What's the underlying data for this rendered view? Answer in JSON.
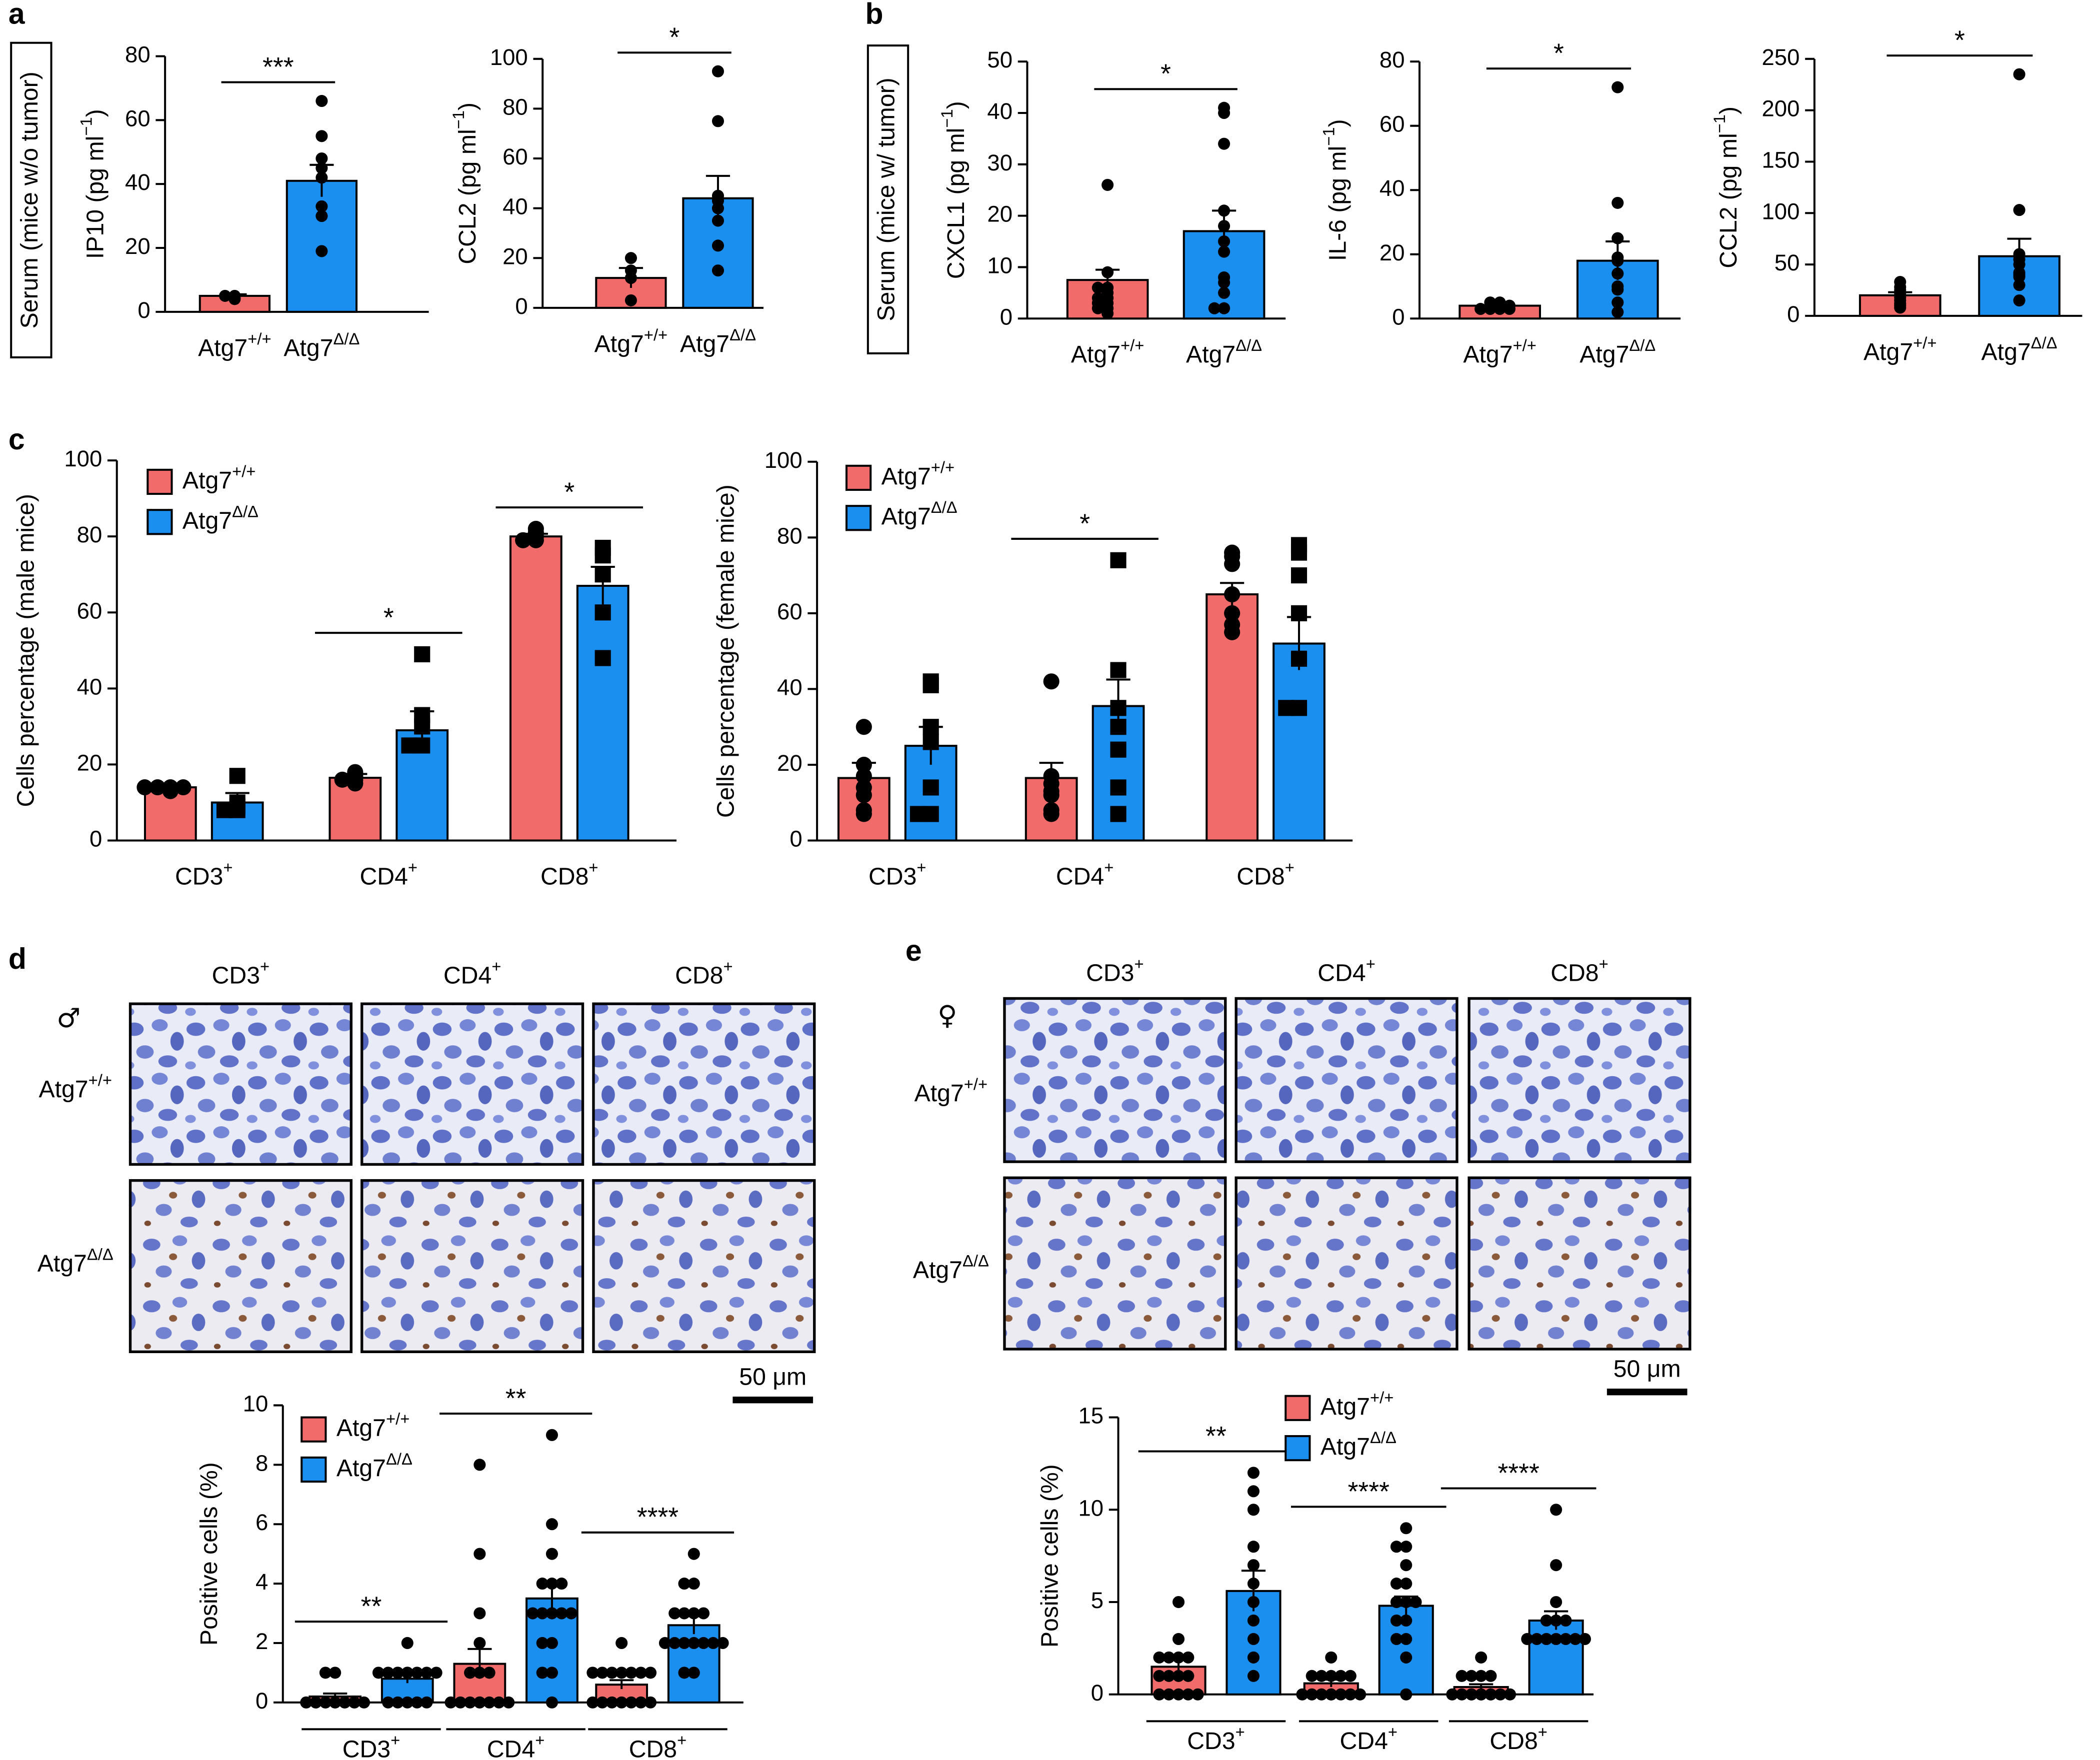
{
  "panel_labels": [
    "a",
    "b",
    "c",
    "d",
    "e"
  ],
  "serum_labels": [
    "Serum (mice w/o tumor)",
    "Serum (mice w/ tumor)"
  ],
  "micrographs": [
    {
      "symbol": "♂",
      "columns": [
        {
          "text": "CD3",
          "sup": "+"
        },
        {
          "text": "CD4",
          "sup": "+"
        },
        {
          "text": "CD8",
          "sup": "+"
        }
      ],
      "rows": [
        {
          "text": "Atg7",
          "sup": "+/+"
        },
        {
          "text": "Atg7",
          "sup": "Δ/Δ"
        }
      ],
      "scale_bar": "50 μm"
    },
    {
      "symbol": "♀",
      "columns": [
        {
          "text": "CD3",
          "sup": "+"
        },
        {
          "text": "CD4",
          "sup": "+"
        },
        {
          "text": "CD8",
          "sup": "+"
        }
      ],
      "rows": [
        {
          "text": "Atg7",
          "sup": "+/+"
        },
        {
          "text": "Atg7",
          "sup": "Δ/Δ"
        }
      ],
      "scale_bar": "50 μm"
    }
  ],
  "chart_data": [
    {
      "type": "bar",
      "ylabel": {
        "text": "IP10 (pg ml",
        "sup": "−1",
        "tail": ")"
      },
      "categories": [
        {
          "text": "Atg7",
          "sup": "+/+"
        },
        {
          "text": "Atg7",
          "sup": "Δ/Δ"
        }
      ],
      "colors": [
        "#f26b6b",
        "#1b8ff0"
      ],
      "marker": "circle",
      "values": [
        5,
        41
      ],
      "errors": [
        0.5,
        5
      ],
      "points": [
        [
          4,
          5,
          5,
          4.5
        ],
        [
          66,
          55,
          48,
          45,
          42,
          33,
          30,
          19
        ]
      ],
      "significance": "***",
      "ylim": [
        0,
        80
      ],
      "yticks": [
        0,
        20,
        40,
        60,
        80
      ]
    },
    {
      "type": "bar",
      "ylabel": {
        "text": "CCL2 (pg ml",
        "sup": "−1",
        "tail": ")"
      },
      "categories": [
        {
          "text": "Atg7",
          "sup": "+/+"
        },
        {
          "text": "Atg7",
          "sup": "Δ/Δ"
        }
      ],
      "colors": [
        "#f26b6b",
        "#1b8ff0"
      ],
      "marker": "circle",
      "values": [
        12,
        44
      ],
      "errors": [
        4,
        9
      ],
      "points": [
        [
          20,
          15,
          12,
          3
        ],
        [
          95,
          75,
          45,
          43,
          40,
          35,
          25,
          15
        ]
      ],
      "significance": "*",
      "ylim": [
        0,
        100
      ],
      "yticks": [
        0,
        20,
        40,
        60,
        80,
        100
      ]
    },
    {
      "type": "bar",
      "ylabel": {
        "text": "CXCL1 (pg ml",
        "sup": "−1",
        "tail": ")"
      },
      "categories": [
        {
          "text": "Atg7",
          "sup": "+/+"
        },
        {
          "text": "Atg7",
          "sup": "Δ/Δ"
        }
      ],
      "colors": [
        "#f26b6b",
        "#1b8ff0"
      ],
      "marker": "circle",
      "values": [
        7.5,
        17
      ],
      "errors": [
        2,
        4
      ],
      "points": [
        [
          26,
          9,
          6,
          6,
          5,
          4,
          4,
          3,
          3,
          2,
          2,
          1
        ],
        [
          41,
          40,
          34,
          21,
          18,
          15,
          13,
          8,
          7,
          5,
          2,
          2
        ]
      ],
      "significance": "*",
      "ylim": [
        0,
        50
      ],
      "yticks": [
        0,
        10,
        20,
        30,
        40,
        50
      ]
    },
    {
      "type": "bar",
      "ylabel": {
        "text": "IL-6 (pg ml",
        "sup": "−1",
        "tail": ")"
      },
      "categories": [
        {
          "text": "Atg7",
          "sup": "+/+"
        },
        {
          "text": "Atg7",
          "sup": "Δ/Δ"
        }
      ],
      "colors": [
        "#f26b6b",
        "#1b8ff0"
      ],
      "marker": "circle",
      "values": [
        4,
        18
      ],
      "errors": [
        0.5,
        6
      ],
      "points": [
        [
          5,
          5,
          4,
          4,
          4,
          3,
          3,
          3,
          3
        ],
        [
          72,
          36,
          25,
          19,
          18,
          14,
          10,
          9,
          5,
          2
        ]
      ],
      "significance": "*",
      "ylim": [
        0,
        80
      ],
      "yticks": [
        0,
        20,
        40,
        60,
        80
      ]
    },
    {
      "type": "bar",
      "ylabel": {
        "text": "CCL2 (pg ml",
        "sup": "−1",
        "tail": ")"
      },
      "categories": [
        {
          "text": "Atg7",
          "sup": "+/+"
        },
        {
          "text": "Atg7",
          "sup": "Δ/Δ"
        }
      ],
      "colors": [
        "#f26b6b",
        "#1b8ff0"
      ],
      "marker": "circle",
      "values": [
        20,
        58
      ],
      "errors": [
        3,
        17
      ],
      "points": [
        [
          33,
          28,
          25,
          22,
          20,
          18,
          15,
          12,
          10,
          8
        ],
        [
          235,
          103,
          60,
          55,
          50,
          42,
          40,
          38,
          30,
          15
        ]
      ],
      "significance": "*",
      "ylim": [
        0,
        250
      ],
      "yticks": [
        0,
        50,
        100,
        150,
        200,
        250
      ]
    },
    {
      "type": "bar",
      "ylabel": {
        "text": "Cells percentage (male mice)"
      },
      "categories": [
        {
          "text": "CD3",
          "sup": "+"
        },
        {
          "text": "CD4",
          "sup": "+"
        },
        {
          "text": "CD8",
          "sup": "+"
        }
      ],
      "series": [
        {
          "name": {
            "text": "Atg7",
            "sup": "+/+"
          },
          "color": "#f26b6b",
          "marker": "circle",
          "values": [
            14,
            16.5,
            80
          ],
          "errors": [
            0.5,
            1,
            0.7
          ],
          "points": [
            [
              14,
              14,
              13,
              14,
              14
            ],
            [
              18,
              16,
              15,
              17,
              16
            ],
            [
              80,
              82,
              81,
              79,
              79
            ]
          ]
        },
        {
          "name": {
            "text": "Atg7",
            "sup": "Δ/Δ"
          },
          "color": "#1b8ff0",
          "marker": "square",
          "values": [
            10,
            29,
            67
          ],
          "errors": [
            2.5,
            5,
            5
          ],
          "points": [
            [
              17,
              10,
              9,
              8,
              8
            ],
            [
              49,
              33,
              30,
              25,
              25
            ],
            [
              77,
              75,
              70,
              60,
              48
            ]
          ]
        }
      ],
      "annotations": [
        null,
        "*",
        "*"
      ],
      "legend": "upper left",
      "ylim": [
        0,
        100
      ],
      "yticks": [
        0,
        20,
        40,
        60,
        80,
        100
      ]
    },
    {
      "type": "bar",
      "ylabel": {
        "text": "Cells percentage (female mice)"
      },
      "categories": [
        {
          "text": "CD3",
          "sup": "+"
        },
        {
          "text": "CD4",
          "sup": "+"
        },
        {
          "text": "CD8",
          "sup": "+"
        }
      ],
      "series": [
        {
          "name": {
            "text": "Atg7",
            "sup": "+/+"
          },
          "color": "#f26b6b",
          "marker": "circle",
          "values": [
            16.5,
            16.5,
            65
          ],
          "errors": [
            4,
            4,
            3
          ],
          "points": [
            [
              30,
              20,
              17,
              14,
              12,
              8,
              7
            ],
            [
              42,
              17,
              15,
              13,
              12,
              8,
              7
            ],
            [
              76,
              75,
              73,
              65,
              60,
              57,
              55
            ]
          ]
        },
        {
          "name": {
            "text": "Atg7",
            "sup": "Δ/Δ"
          },
          "color": "#1b8ff0",
          "marker": "square",
          "values": [
            25,
            35.5,
            52
          ],
          "errors": [
            5,
            7,
            7
          ],
          "points": [
            [
              42,
              41,
              30,
              26,
              14,
              7,
              7
            ],
            [
              74,
              45,
              35,
              30,
              24,
              14,
              7
            ],
            [
              78,
              76,
              70,
              60,
              48,
              35,
              35
            ]
          ]
        }
      ],
      "annotations": [
        null,
        "*",
        null
      ],
      "legend": "upper left",
      "ylim": [
        0,
        100
      ],
      "yticks": [
        0,
        20,
        40,
        60,
        80,
        100
      ]
    },
    {
      "type": "bar",
      "ylabel": {
        "text": "Positive cells (%)"
      },
      "categories": [
        {
          "text": "CD3",
          "sup": "+"
        },
        {
          "text": "CD4",
          "sup": "+"
        },
        {
          "text": "CD8",
          "sup": "+"
        }
      ],
      "series": [
        {
          "name": {
            "text": "Atg7",
            "sup": "+/+"
          },
          "color": "#f26b6b",
          "marker": "circle",
          "values": [
            0.2,
            1.3,
            0.6
          ],
          "errors": [
            0.1,
            0.5,
            0.15
          ],
          "points": [
            [
              1,
              1,
              0,
              0,
              0,
              0,
              0,
              0,
              0,
              0,
              0,
              0,
              0,
              0,
              0
            ],
            [
              8,
              5,
              3,
              2,
              1,
              1,
              1,
              0,
              0,
              0,
              0,
              0,
              0,
              0,
              0
            ],
            [
              2,
              1,
              1,
              1,
              1,
              1,
              1,
              1,
              0,
              0,
              0,
              0,
              0,
              0,
              0
            ]
          ]
        },
        {
          "name": {
            "text": "Atg7",
            "sup": "Δ/Δ"
          },
          "color": "#1b8ff0",
          "marker": "circle",
          "values": [
            0.8,
            3.5,
            2.6
          ],
          "errors": [
            0.15,
            0.5,
            0.3
          ],
          "points": [
            [
              2,
              1,
              1,
              1,
              1,
              1,
              1,
              1,
              1,
              1,
              0,
              0,
              0,
              0,
              0
            ],
            [
              9,
              6,
              5,
              4,
              4,
              4,
              3,
              3,
              3,
              3,
              3,
              2,
              2,
              1,
              1,
              0
            ],
            [
              5,
              4,
              4,
              3,
              3,
              3,
              3,
              2,
              2,
              2,
              2,
              2,
              2,
              2,
              1,
              1
            ]
          ]
        }
      ],
      "annotations": [
        "**",
        "**",
        "****"
      ],
      "legend": "upper left",
      "ylim": [
        0,
        10
      ],
      "yticks": [
        0,
        2,
        4,
        6,
        8,
        10
      ]
    },
    {
      "type": "bar",
      "ylabel": {
        "text": "Positive cells (%)"
      },
      "categories": [
        {
          "text": "CD3",
          "sup": "+"
        },
        {
          "text": "CD4",
          "sup": "+"
        },
        {
          "text": "CD8",
          "sup": "+"
        }
      ],
      "series": [
        {
          "name": {
            "text": "Atg7",
            "sup": "+/+"
          },
          "color": "#f26b6b",
          "marker": "circle",
          "values": [
            1.5,
            0.6,
            0.4
          ],
          "errors": [
            0.4,
            0.2,
            0.15
          ],
          "points": [
            [
              5,
              3,
              2,
              2,
              2,
              2,
              1,
              1,
              1,
              1,
              0,
              0,
              0,
              0,
              0
            ],
            [
              2,
              1,
              1,
              1,
              1,
              1,
              0,
              0,
              0,
              0,
              0,
              0,
              0,
              0
            ],
            [
              2,
              1,
              1,
              1,
              1,
              0,
              0,
              0,
              0,
              0,
              0,
              0,
              0,
              0,
              0
            ]
          ]
        },
        {
          "name": {
            "text": "Atg7",
            "sup": "Δ/Δ"
          },
          "color": "#1b8ff0",
          "marker": "circle",
          "values": [
            5.6,
            4.8,
            4.0
          ],
          "errors": [
            1.1,
            0.5,
            0.5
          ],
          "points": [
            [
              12,
              11,
              10,
              8,
              7,
              6,
              5,
              4,
              3,
              2,
              1
            ],
            [
              9,
              8,
              8,
              7,
              6,
              6,
              5,
              5,
              5,
              4,
              4,
              3,
              3,
              2,
              0
            ],
            [
              10,
              7,
              5,
              4,
              4,
              4,
              3,
              3,
              3,
              3,
              3,
              3,
              3,
              3,
              3
            ]
          ]
        }
      ],
      "annotations": [
        "**",
        "****",
        "****"
      ],
      "legend": "upper left",
      "ylim": [
        0,
        15
      ],
      "yticks": [
        0,
        5,
        10,
        15
      ]
    }
  ]
}
